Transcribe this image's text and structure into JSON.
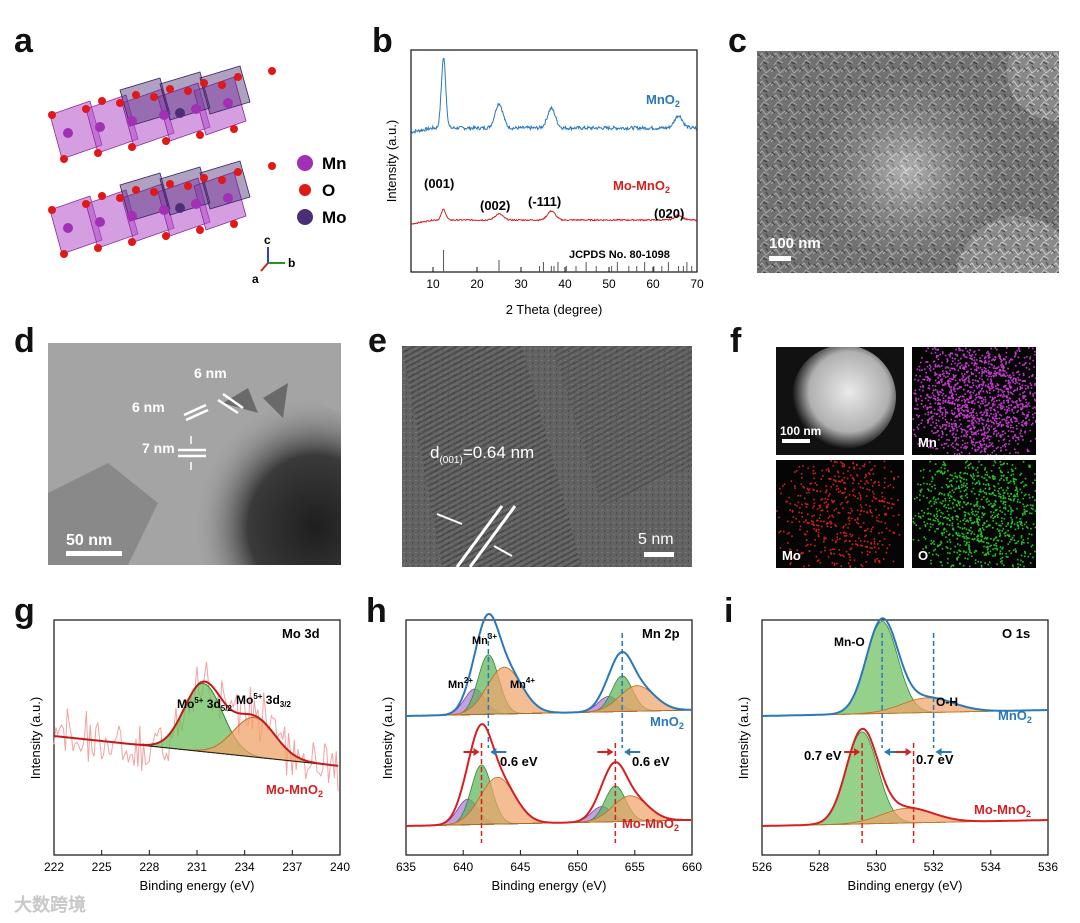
{
  "labels": {
    "a": "a",
    "b": "b",
    "c": "c",
    "d": "d",
    "e": "e",
    "f": "f",
    "g": "g",
    "h": "h",
    "i": "i"
  },
  "panel_a": {
    "legend": [
      "Mn",
      "O",
      "Mo"
    ],
    "colors": {
      "mn": "#a22fb6",
      "o": "#e01818",
      "mo": "#4b2e78",
      "poly": "#b24fc8"
    },
    "axes": {
      "a": "a",
      "b": "b",
      "c": "c"
    }
  },
  "panel_c": {
    "scalebar": "100 nm"
  },
  "panel_d": {
    "ann1": "6 nm",
    "ann2": "6 nm",
    "ann3": "7 nm",
    "scalebar": "50 nm"
  },
  "panel_e": {
    "dspacing_pre": "d",
    "dspacing_sub": "(001)",
    "dspacing_post": "=0.64 nm",
    "scalebar": "5 nm"
  },
  "panel_f": {
    "scalebar": "100 nm",
    "tiles": [
      "Mn",
      "Mo",
      "O"
    ]
  },
  "chart_data": [
    {
      "id": "b",
      "type": "line",
      "xlabel": "2 Theta (degree)",
      "ylabel": "Intensity (a.u.)",
      "xlim": [
        5,
        70
      ],
      "xticks": [
        10,
        20,
        30,
        40,
        50,
        60,
        70
      ],
      "series": [
        {
          "name": "MnO",
          "sub": "2",
          "color": "#2a78b8",
          "peaks": [
            [
              12.4,
              1.0
            ],
            [
              25.0,
              0.35
            ],
            [
              36.9,
              0.28
            ],
            [
              65.8,
              0.18
            ]
          ]
        },
        {
          "name": "Mo-MnO",
          "sub": "2",
          "color": "#d42020",
          "peaks": [
            [
              12.4,
              0.38
            ],
            [
              25.0,
              0.22
            ],
            [
              36.9,
              0.32
            ],
            [
              65.8,
              0.17
            ]
          ]
        }
      ],
      "peak_labels": [
        "(001)",
        "(002)",
        "(-111)",
        "(020)"
      ],
      "reference": "JCPDS No. 80-1098",
      "ref_lines": [
        12.4,
        25.0,
        34.2,
        35.1,
        36.9,
        37.5,
        38.4,
        40.3,
        42.5,
        44.8,
        47.1,
        50.6,
        51.9,
        54.5,
        56.3,
        58.1,
        60.2,
        62.0,
        63.5,
        65.8,
        66.9,
        67.7,
        68.8
      ]
    },
    {
      "id": "g",
      "type": "line",
      "xlabel": "Binding energy (eV)",
      "ylabel": "Intensity (a.u.)",
      "xlim": [
        222,
        240
      ],
      "xticks": [
        222,
        225,
        228,
        231,
        234,
        237,
        240
      ],
      "annotation": "Mo 3d",
      "series_label": "Mo-MnO",
      "series_sub": "2",
      "peaks": [
        {
          "label_pre": "Mo",
          "label_sup": "5+",
          "label_post": " 3d",
          "label_sub": "5/2",
          "center": 231.4,
          "height": 0.62,
          "color": "#3a9a3a"
        },
        {
          "label_pre": "Mo",
          "label_sup": "5+",
          "label_post": " 3d",
          "label_sub": "3/2",
          "center": 234.6,
          "height": 0.36,
          "color": "#e27a26"
        }
      ]
    },
    {
      "id": "h",
      "type": "line",
      "xlabel": "Binding energy (eV)",
      "ylabel": "Intensity (a.u.)",
      "xlim": [
        635,
        660
      ],
      "xticks": [
        635,
        640,
        645,
        650,
        655,
        660
      ],
      "annotation": "Mn 2p",
      "species": [
        {
          "pre": "Mn",
          "sup": "2+"
        },
        {
          "pre": "Mn",
          "sup": "3+"
        },
        {
          "pre": "Mn",
          "sup": "4+"
        }
      ],
      "series": [
        {
          "name": "MnO",
          "sub": "2",
          "color": "#2a78b8",
          "peaks": [
            642.2,
            653.9
          ]
        },
        {
          "name": "Mo-MnO",
          "sub": "2",
          "color": "#d42020",
          "peaks": [
            641.6,
            653.3
          ]
        }
      ],
      "shift_left": "0.6 eV",
      "shift_right": "0.6 eV"
    },
    {
      "id": "i",
      "type": "line",
      "xlabel": "Binding energy (eV)",
      "ylabel": "Intensity (a.u.)",
      "xlim": [
        526,
        536
      ],
      "xticks": [
        526,
        528,
        530,
        532,
        534,
        536
      ],
      "annotation": "O 1s",
      "components": [
        "Mn-O",
        "O-H"
      ],
      "series": [
        {
          "name": "MnO",
          "sub": "2",
          "color": "#2a78b8",
          "peaks": [
            530.2,
            532.0
          ]
        },
        {
          "name": "Mo-MnO",
          "sub": "2",
          "color": "#d42020",
          "peaks": [
            529.5,
            531.3
          ]
        }
      ],
      "shift_left": "0.7 eV",
      "shift_right": "0.7 eV"
    }
  ],
  "watermark": "大数跨境"
}
